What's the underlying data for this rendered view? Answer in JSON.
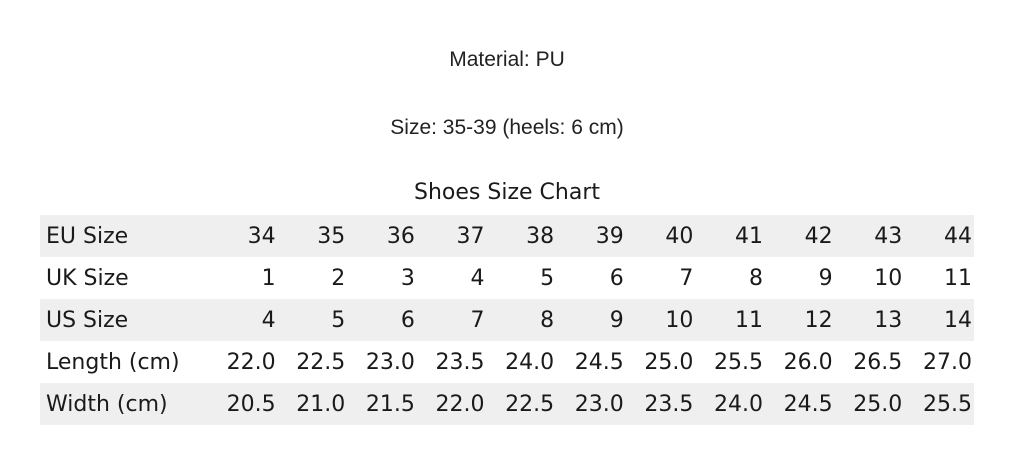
{
  "material": "Material: PU",
  "size": "Size: 35-39 (heels: 6 cm)",
  "table": {
    "caption": "Shoes Size Chart",
    "rows": [
      {
        "label": "EU Size",
        "values": [
          "34",
          "35",
          "36",
          "37",
          "38",
          "39",
          "40",
          "41",
          "42",
          "43",
          "44"
        ]
      },
      {
        "label": "UK Size",
        "values": [
          "1",
          "2",
          "3",
          "4",
          "5",
          "6",
          "7",
          "8",
          "9",
          "10",
          "11"
        ]
      },
      {
        "label": "US Size",
        "values": [
          "4",
          "5",
          "6",
          "7",
          "8",
          "9",
          "10",
          "11",
          "12",
          "13",
          "14"
        ]
      },
      {
        "label": "Length (cm)",
        "values": [
          "22.0",
          "22.5",
          "23.0",
          "23.5",
          "24.0",
          "24.5",
          "25.0",
          "25.5",
          "26.0",
          "26.5",
          "27.0"
        ]
      },
      {
        "label": "Width (cm)",
        "values": [
          "20.5",
          "21.0",
          "21.5",
          "22.0",
          "22.5",
          "23.0",
          "23.5",
          "24.0",
          "24.5",
          "25.0",
          "25.5"
        ]
      }
    ]
  }
}
